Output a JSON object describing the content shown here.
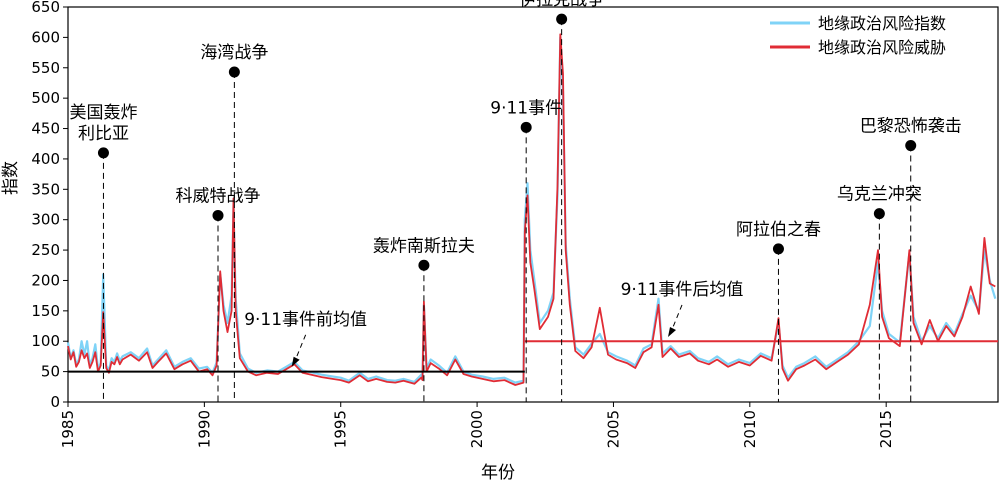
{
  "chart_data": {
    "type": "line",
    "title": "",
    "xlabel": "年份",
    "ylabel": "指数",
    "xlim": [
      1985,
      2019.1
    ],
    "ylim": [
      0,
      650
    ],
    "x_ticks": [
      1985,
      1990,
      1995,
      2000,
      2005,
      2010,
      2015
    ],
    "y_ticks": [
      0,
      50,
      100,
      150,
      200,
      250,
      300,
      350,
      400,
      450,
      500,
      550,
      600,
      650
    ],
    "legend_position": "top-right",
    "grid": false,
    "series": [
      {
        "name": "地缘政治风险指数",
        "color": "#7fd3f7",
        "points": [
          [
            1985.0,
            98
          ],
          [
            1985.1,
            72
          ],
          [
            1985.2,
            85
          ],
          [
            1985.3,
            62
          ],
          [
            1985.4,
            70
          ],
          [
            1985.5,
            100
          ],
          [
            1985.6,
            78
          ],
          [
            1985.7,
            100
          ],
          [
            1985.8,
            60
          ],
          [
            1985.9,
            72
          ],
          [
            1986.0,
            95
          ],
          [
            1986.1,
            55
          ],
          [
            1986.2,
            64
          ],
          [
            1986.29,
            210
          ],
          [
            1986.4,
            60
          ],
          [
            1986.5,
            52
          ],
          [
            1986.6,
            72
          ],
          [
            1986.7,
            66
          ],
          [
            1986.8,
            80
          ],
          [
            1986.9,
            68
          ],
          [
            1987.0,
            75
          ],
          [
            1987.3,
            82
          ],
          [
            1987.6,
            72
          ],
          [
            1987.9,
            88
          ],
          [
            1988.1,
            60
          ],
          [
            1988.3,
            70
          ],
          [
            1988.6,
            85
          ],
          [
            1988.9,
            58
          ],
          [
            1989.2,
            66
          ],
          [
            1989.5,
            72
          ],
          [
            1989.8,
            55
          ],
          [
            1990.1,
            58
          ],
          [
            1990.3,
            48
          ],
          [
            1990.45,
            65
          ],
          [
            1990.58,
            210
          ],
          [
            1990.7,
            160
          ],
          [
            1990.85,
            130
          ],
          [
            1991.0,
            175
          ],
          [
            1991.07,
            320
          ],
          [
            1991.15,
            170
          ],
          [
            1991.3,
            80
          ],
          [
            1991.6,
            55
          ],
          [
            1991.9,
            48
          ],
          [
            1992.3,
            52
          ],
          [
            1992.7,
            50
          ],
          [
            1993.0,
            58
          ],
          [
            1993.3,
            66
          ],
          [
            1993.6,
            52
          ],
          [
            1994.0,
            48
          ],
          [
            1994.3,
            45
          ],
          [
            1994.7,
            42
          ],
          [
            1995.0,
            40
          ],
          [
            1995.3,
            35
          ],
          [
            1995.7,
            48
          ],
          [
            1996.0,
            38
          ],
          [
            1996.3,
            42
          ],
          [
            1996.7,
            36
          ],
          [
            1997.0,
            35
          ],
          [
            1997.3,
            38
          ],
          [
            1997.7,
            33
          ],
          [
            1997.95,
            45
          ],
          [
            1998.0,
            40
          ],
          [
            1998.05,
            160
          ],
          [
            1998.15,
            55
          ],
          [
            1998.3,
            70
          ],
          [
            1998.6,
            60
          ],
          [
            1998.9,
            48
          ],
          [
            1999.2,
            75
          ],
          [
            1999.5,
            50
          ],
          [
            1999.8,
            45
          ],
          [
            2000.2,
            42
          ],
          [
            2000.6,
            38
          ],
          [
            2001.0,
            40
          ],
          [
            2001.4,
            32
          ],
          [
            2001.7,
            35
          ],
          [
            2001.75,
            300
          ],
          [
            2001.85,
            360
          ],
          [
            2001.95,
            250
          ],
          [
            2002.1,
            200
          ],
          [
            2002.3,
            130
          ],
          [
            2002.6,
            150
          ],
          [
            2002.8,
            180
          ],
          [
            2002.95,
            340
          ],
          [
            2003.05,
            600
          ],
          [
            2003.15,
            510
          ],
          [
            2003.25,
            260
          ],
          [
            2003.4,
            170
          ],
          [
            2003.6,
            90
          ],
          [
            2003.9,
            78
          ],
          [
            2004.2,
            96
          ],
          [
            2004.5,
            112
          ],
          [
            2004.8,
            82
          ],
          [
            2005.1,
            75
          ],
          [
            2005.5,
            68
          ],
          [
            2005.8,
            60
          ],
          [
            2006.1,
            88
          ],
          [
            2006.4,
            95
          ],
          [
            2006.65,
            170
          ],
          [
            2006.8,
            80
          ],
          [
            2007.1,
            92
          ],
          [
            2007.4,
            78
          ],
          [
            2007.8,
            84
          ],
          [
            2008.1,
            72
          ],
          [
            2008.5,
            66
          ],
          [
            2008.8,
            75
          ],
          [
            2009.2,
            62
          ],
          [
            2009.6,
            70
          ],
          [
            2010.0,
            64
          ],
          [
            2010.4,
            80
          ],
          [
            2010.8,
            72
          ],
          [
            2011.05,
            130
          ],
          [
            2011.2,
            60
          ],
          [
            2011.4,
            40
          ],
          [
            2011.7,
            58
          ],
          [
            2012.0,
            64
          ],
          [
            2012.4,
            75
          ],
          [
            2012.8,
            58
          ],
          [
            2013.2,
            70
          ],
          [
            2013.6,
            82
          ],
          [
            2014.0,
            100
          ],
          [
            2014.4,
            125
          ],
          [
            2014.7,
            230
          ],
          [
            2014.85,
            150
          ],
          [
            2015.1,
            112
          ],
          [
            2015.5,
            98
          ],
          [
            2015.85,
            245
          ],
          [
            2016.0,
            140
          ],
          [
            2016.3,
            100
          ],
          [
            2016.6,
            125
          ],
          [
            2016.9,
            105
          ],
          [
            2017.2,
            130
          ],
          [
            2017.5,
            112
          ],
          [
            2017.8,
            145
          ],
          [
            2018.1,
            175
          ],
          [
            2018.4,
            150
          ],
          [
            2018.6,
            250
          ],
          [
            2018.8,
            200
          ],
          [
            2019.0,
            170
          ]
        ]
      },
      {
        "name": "地缘政治风险威胁",
        "color": "#e02c35",
        "points": [
          [
            1985.0,
            92
          ],
          [
            1985.1,
            70
          ],
          [
            1985.2,
            82
          ],
          [
            1985.3,
            58
          ],
          [
            1985.4,
            66
          ],
          [
            1985.5,
            85
          ],
          [
            1985.6,
            72
          ],
          [
            1985.7,
            80
          ],
          [
            1985.8,
            56
          ],
          [
            1985.9,
            66
          ],
          [
            1986.0,
            82
          ],
          [
            1986.1,
            50
          ],
          [
            1986.2,
            60
          ],
          [
            1986.29,
            148
          ],
          [
            1986.4,
            56
          ],
          [
            1986.5,
            48
          ],
          [
            1986.6,
            66
          ],
          [
            1986.7,
            62
          ],
          [
            1986.8,
            74
          ],
          [
            1986.9,
            62
          ],
          [
            1987.0,
            70
          ],
          [
            1987.3,
            78
          ],
          [
            1987.6,
            68
          ],
          [
            1987.9,
            82
          ],
          [
            1988.1,
            56
          ],
          [
            1988.3,
            66
          ],
          [
            1988.6,
            80
          ],
          [
            1988.9,
            54
          ],
          [
            1989.2,
            62
          ],
          [
            1989.5,
            68
          ],
          [
            1989.8,
            50
          ],
          [
            1990.1,
            54
          ],
          [
            1990.3,
            44
          ],
          [
            1990.45,
            60
          ],
          [
            1990.58,
            215
          ],
          [
            1990.7,
            150
          ],
          [
            1990.85,
            115
          ],
          [
            1991.0,
            150
          ],
          [
            1991.07,
            335
          ],
          [
            1991.15,
            150
          ],
          [
            1991.3,
            72
          ],
          [
            1991.6,
            50
          ],
          [
            1991.9,
            44
          ],
          [
            1992.3,
            48
          ],
          [
            1992.7,
            46
          ],
          [
            1993.0,
            54
          ],
          [
            1993.3,
            62
          ],
          [
            1993.6,
            48
          ],
          [
            1994.0,
            44
          ],
          [
            1994.3,
            41
          ],
          [
            1994.7,
            38
          ],
          [
            1995.0,
            36
          ],
          [
            1995.3,
            32
          ],
          [
            1995.7,
            44
          ],
          [
            1996.0,
            34
          ],
          [
            1996.3,
            38
          ],
          [
            1996.7,
            33
          ],
          [
            1997.0,
            32
          ],
          [
            1997.3,
            35
          ],
          [
            1997.7,
            30
          ],
          [
            1997.95,
            40
          ],
          [
            1998.0,
            36
          ],
          [
            1998.05,
            165
          ],
          [
            1998.15,
            50
          ],
          [
            1998.3,
            64
          ],
          [
            1998.6,
            55
          ],
          [
            1998.9,
            44
          ],
          [
            1999.2,
            70
          ],
          [
            1999.5,
            46
          ],
          [
            1999.8,
            42
          ],
          [
            2000.2,
            38
          ],
          [
            2000.6,
            34
          ],
          [
            2001.0,
            36
          ],
          [
            2001.4,
            28
          ],
          [
            2001.7,
            32
          ],
          [
            2001.75,
            280
          ],
          [
            2001.85,
            340
          ],
          [
            2001.95,
            230
          ],
          [
            2002.1,
            185
          ],
          [
            2002.3,
            120
          ],
          [
            2002.6,
            140
          ],
          [
            2002.8,
            170
          ],
          [
            2002.95,
            355
          ],
          [
            2003.05,
            605
          ],
          [
            2003.15,
            540
          ],
          [
            2003.25,
            250
          ],
          [
            2003.4,
            160
          ],
          [
            2003.6,
            84
          ],
          [
            2003.9,
            72
          ],
          [
            2004.2,
            90
          ],
          [
            2004.5,
            155
          ],
          [
            2004.8,
            78
          ],
          [
            2005.1,
            70
          ],
          [
            2005.5,
            64
          ],
          [
            2005.8,
            56
          ],
          [
            2006.1,
            82
          ],
          [
            2006.4,
            90
          ],
          [
            2006.65,
            160
          ],
          [
            2006.8,
            74
          ],
          [
            2007.1,
            88
          ],
          [
            2007.4,
            74
          ],
          [
            2007.8,
            80
          ],
          [
            2008.1,
            68
          ],
          [
            2008.5,
            62
          ],
          [
            2008.8,
            70
          ],
          [
            2009.2,
            58
          ],
          [
            2009.6,
            66
          ],
          [
            2010.0,
            60
          ],
          [
            2010.4,
            76
          ],
          [
            2010.8,
            68
          ],
          [
            2011.05,
            138
          ],
          [
            2011.2,
            55
          ],
          [
            2011.4,
            35
          ],
          [
            2011.7,
            54
          ],
          [
            2012.0,
            60
          ],
          [
            2012.4,
            70
          ],
          [
            2012.8,
            54
          ],
          [
            2013.2,
            66
          ],
          [
            2013.6,
            78
          ],
          [
            2014.0,
            95
          ],
          [
            2014.4,
            160
          ],
          [
            2014.7,
            250
          ],
          [
            2014.85,
            140
          ],
          [
            2015.1,
            105
          ],
          [
            2015.5,
            92
          ],
          [
            2015.85,
            250
          ],
          [
            2016.0,
            130
          ],
          [
            2016.3,
            95
          ],
          [
            2016.6,
            135
          ],
          [
            2016.9,
            100
          ],
          [
            2017.2,
            125
          ],
          [
            2017.5,
            108
          ],
          [
            2017.8,
            140
          ],
          [
            2018.1,
            190
          ],
          [
            2018.4,
            145
          ],
          [
            2018.6,
            270
          ],
          [
            2018.8,
            195
          ],
          [
            2019.0,
            190
          ]
        ]
      }
    ],
    "mean_lines": [
      {
        "label": "9·11事件前均值",
        "x_range": [
          1985,
          2001.75
        ],
        "y": 50,
        "color": "#000000",
        "label_anchor": [
          1993.2,
          58
        ]
      },
      {
        "label": "9·11事件后均值",
        "x_range": [
          2001.75,
          2019.1
        ],
        "y": 100,
        "color": "#e02c35",
        "label_anchor": [
          2007.0,
          107
        ]
      }
    ],
    "annotations": [
      {
        "lines": [
          "美国轰炸",
          "利比亚"
        ],
        "x": 1986.3,
        "y": 410
      },
      {
        "lines": [
          "科威特战争"
        ],
        "x": 1990.5,
        "y": 307
      },
      {
        "lines": [
          "海湾战争"
        ],
        "x": 1991.1,
        "y": 543
      },
      {
        "lines": [
          "轰炸南斯拉夫"
        ],
        "x": 1998.05,
        "y": 225
      },
      {
        "lines": [
          "9·11事件"
        ],
        "x": 2001.8,
        "y": 452
      },
      {
        "lines": [
          "伊拉克战争"
        ],
        "x": 2003.1,
        "y": 630
      },
      {
        "lines": [
          "阿拉伯之春"
        ],
        "x": 2011.05,
        "y": 252
      },
      {
        "lines": [
          "乌克兰冲突"
        ],
        "x": 2014.75,
        "y": 310
      },
      {
        "lines": [
          "巴黎恐怖袭击"
        ],
        "x": 2015.9,
        "y": 422
      }
    ]
  }
}
